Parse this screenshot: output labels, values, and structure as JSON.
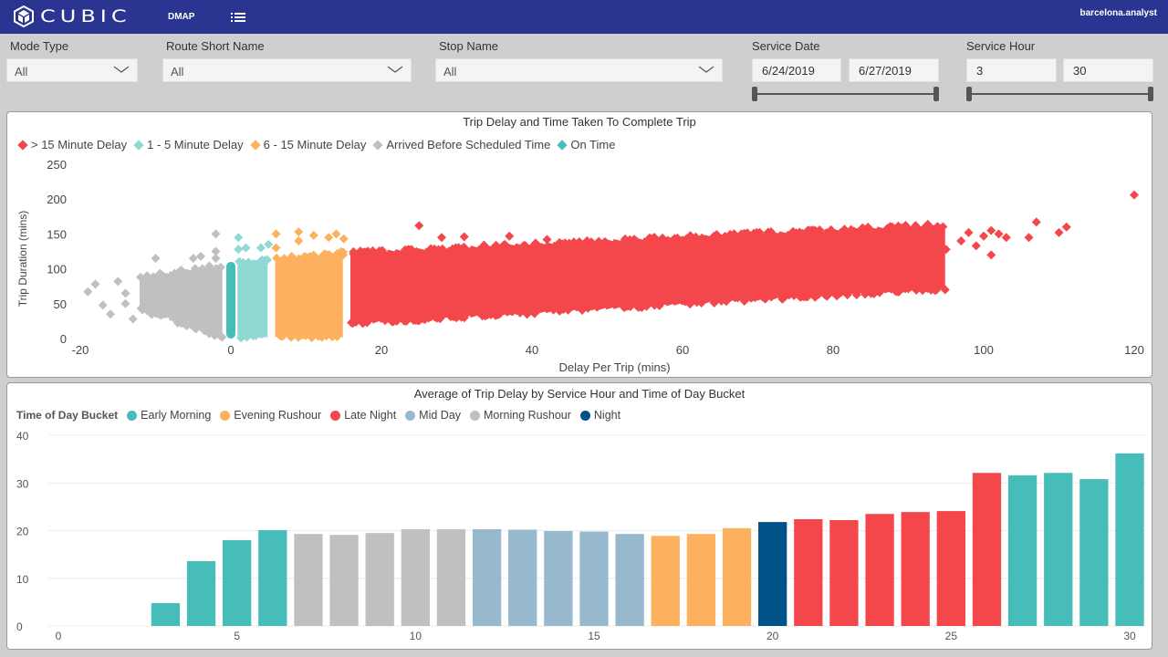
{
  "header": {
    "brand": "CUBIC",
    "app_name": "DMAP",
    "user": "barcelona.analyst",
    "icons": {
      "logo": "cube-logo-icon",
      "menu": "list-menu-icon"
    }
  },
  "filters": {
    "mode_type": {
      "label": "Mode Type",
      "value": "All"
    },
    "route_short_name": {
      "label": "Route Short Name",
      "value": "All"
    },
    "stop_name": {
      "label": "Stop Name",
      "value": "All"
    },
    "service_date": {
      "label": "Service Date",
      "start": "6/24/2019",
      "end": "6/27/2019"
    },
    "service_hour": {
      "label": "Service Hour",
      "start": "3",
      "end": "30"
    }
  },
  "colors": {
    "header_bg": "#293591",
    "late15": "#f4474c",
    "late1_5": "#8fd9d5",
    "late6_15": "#fdb15e",
    "early": "#c0c0c0",
    "ontime": "#47bdba",
    "early_morning": "#47bdba",
    "evening_rushour": "#fdb15e",
    "late_night": "#f4474c",
    "mid_day": "#97b9cd",
    "morning_rushour": "#c0c0c0",
    "night": "#005288"
  },
  "chart_data": [
    {
      "type": "scatter",
      "title": "Trip Delay and Time Taken To Complete Trip",
      "xlabel": "Delay Per Trip (mins)",
      "ylabel": "Trip Duration (mins)",
      "xlim": [
        -20,
        120
      ],
      "ylim": [
        0,
        250
      ],
      "xticks": [
        "-20",
        "0",
        "20",
        "40",
        "60",
        "80",
        "100",
        "120"
      ],
      "yticks": [
        "0",
        "50",
        "100",
        "150",
        "200",
        "250"
      ],
      "grid": false,
      "legend_position": "top-left",
      "marker": "diamond",
      "series": [
        {
          "name": "> 15 Minute Delay",
          "color_key": "late15",
          "x_range": [
            16,
            120
          ],
          "band": {
            "x": [
              16,
              95
            ],
            "y_low": [
              20,
              70
            ],
            "y_high": [
              125,
              165
            ]
          },
          "outliers": [
            [
              25,
              162
            ],
            [
              28,
              145
            ],
            [
              31,
              146
            ],
            [
              37,
              147
            ],
            [
              42,
              142
            ],
            [
              48,
              73
            ],
            [
              53,
              69
            ],
            [
              79,
              83
            ],
            [
              84,
              128
            ],
            [
              87,
              140
            ],
            [
              91,
              145
            ],
            [
              93,
              138
            ],
            [
              95,
              128
            ],
            [
              97,
              140
            ],
            [
              98,
              152
            ],
            [
              99,
              133
            ],
            [
              100,
              147
            ],
            [
              101,
              155
            ],
            [
              102,
              150
            ],
            [
              101,
              120
            ],
            [
              103,
              145
            ],
            [
              106,
              145
            ],
            [
              107,
              167
            ],
            [
              110,
              152
            ],
            [
              111,
              160
            ],
            [
              120,
              206
            ]
          ]
        },
        {
          "name": "1 - 5 Minute Delay",
          "color_key": "late1_5",
          "x_range": [
            1,
            5
          ],
          "band": {
            "x": [
              1,
              5
            ],
            "y_low": [
              0,
              0
            ],
            "y_high": [
              112,
              115
            ]
          },
          "outliers": [
            [
              1,
              145
            ],
            [
              1,
              128
            ],
            [
              2,
              130
            ],
            [
              4,
              130
            ],
            [
              5,
              135
            ]
          ]
        },
        {
          "name": "6 - 15 Minute Delay",
          "color_key": "late6_15",
          "x_range": [
            6,
            15
          ],
          "band": {
            "x": [
              6,
              15
            ],
            "y_low": [
              2,
              0
            ],
            "y_high": [
              118,
              125
            ]
          },
          "outliers": [
            [
              6,
              150
            ],
            [
              6,
              130
            ],
            [
              9,
              153
            ],
            [
              9,
              140
            ],
            [
              11,
              148
            ],
            [
              13,
              145
            ],
            [
              14,
              150
            ],
            [
              15,
              143
            ]
          ]
        },
        {
          "name": "Arrived Before Scheduled Time",
          "color_key": "early",
          "x_range": [
            -20,
            -1
          ],
          "band": {
            "x": [
              -12,
              -1
            ],
            "y_low": [
              40,
              0
            ],
            "y_high": [
              90,
              108
            ]
          },
          "outliers": [
            [
              -19,
              67
            ],
            [
              -18,
              78
            ],
            [
              -17,
              48
            ],
            [
              -16,
              35
            ],
            [
              -15,
              82
            ],
            [
              -14,
              65
            ],
            [
              -14,
              50
            ],
            [
              -13,
              28
            ],
            [
              -12,
              88
            ],
            [
              -11,
              85
            ],
            [
              -10,
              115
            ],
            [
              -8,
              55
            ],
            [
              -5,
              115
            ],
            [
              -4,
              118
            ],
            [
              -2,
              150
            ],
            [
              -2,
              125
            ],
            [
              -2,
              115
            ]
          ]
        },
        {
          "name": "On Time",
          "color_key": "ontime",
          "x_range": [
            0,
            0
          ],
          "band": {
            "x": [
              0,
              0
            ],
            "y_low": [
              0,
              0
            ],
            "y_high": [
              110,
              110
            ]
          },
          "outliers": []
        }
      ]
    },
    {
      "type": "bar",
      "title": "Average of Trip Delay by Service Hour and Time of Day Bucket",
      "xlabel": "",
      "ylabel": "",
      "xlim": [
        0,
        30
      ],
      "ylim": [
        0,
        40
      ],
      "xticks": [
        "0",
        "5",
        "10",
        "15",
        "20",
        "25",
        "30"
      ],
      "yticks": [
        "0",
        "10",
        "20",
        "30",
        "40"
      ],
      "grid": true,
      "legend_title": "Time of Day Bucket",
      "legend_position": "top-left",
      "legend": [
        {
          "name": "Early Morning",
          "color_key": "early_morning"
        },
        {
          "name": "Evening Rushour",
          "color_key": "evening_rushour"
        },
        {
          "name": "Late Night",
          "color_key": "late_night"
        },
        {
          "name": "Mid Day",
          "color_key": "mid_day"
        },
        {
          "name": "Morning Rushour",
          "color_key": "morning_rushour"
        },
        {
          "name": "Night",
          "color_key": "night"
        }
      ],
      "bars": [
        {
          "hour": 3,
          "value": 4.8,
          "bucket": "early_morning"
        },
        {
          "hour": 4,
          "value": 13.6,
          "bucket": "early_morning"
        },
        {
          "hour": 5,
          "value": 18.0,
          "bucket": "early_morning"
        },
        {
          "hour": 6,
          "value": 20.1,
          "bucket": "early_morning"
        },
        {
          "hour": 7,
          "value": 19.3,
          "bucket": "morning_rushour"
        },
        {
          "hour": 8,
          "value": 19.1,
          "bucket": "morning_rushour"
        },
        {
          "hour": 9,
          "value": 19.5,
          "bucket": "morning_rushour"
        },
        {
          "hour": 10,
          "value": 20.3,
          "bucket": "morning_rushour"
        },
        {
          "hour": 11,
          "value": 20.3,
          "bucket": "morning_rushour"
        },
        {
          "hour": 12,
          "value": 20.3,
          "bucket": "mid_day"
        },
        {
          "hour": 13,
          "value": 20.2,
          "bucket": "mid_day"
        },
        {
          "hour": 14,
          "value": 19.9,
          "bucket": "mid_day"
        },
        {
          "hour": 15,
          "value": 19.8,
          "bucket": "mid_day"
        },
        {
          "hour": 16,
          "value": 19.3,
          "bucket": "mid_day"
        },
        {
          "hour": 17,
          "value": 18.9,
          "bucket": "evening_rushour"
        },
        {
          "hour": 18,
          "value": 19.3,
          "bucket": "evening_rushour"
        },
        {
          "hour": 19,
          "value": 20.5,
          "bucket": "evening_rushour"
        },
        {
          "hour": 20,
          "value": 21.8,
          "bucket": "night"
        },
        {
          "hour": 21,
          "value": 22.4,
          "bucket": "late_night"
        },
        {
          "hour": 22,
          "value": 22.2,
          "bucket": "late_night"
        },
        {
          "hour": 23,
          "value": 23.5,
          "bucket": "late_night"
        },
        {
          "hour": 24,
          "value": 23.9,
          "bucket": "late_night"
        },
        {
          "hour": 25,
          "value": 24.1,
          "bucket": "late_night"
        },
        {
          "hour": 26,
          "value": 32.1,
          "bucket": "late_night"
        },
        {
          "hour": 27,
          "value": 31.6,
          "bucket": "early_morning"
        },
        {
          "hour": 28,
          "value": 32.1,
          "bucket": "early_morning"
        },
        {
          "hour": 29,
          "value": 30.8,
          "bucket": "early_morning"
        },
        {
          "hour": 30,
          "value": 36.2,
          "bucket": "early_morning"
        }
      ]
    }
  ]
}
